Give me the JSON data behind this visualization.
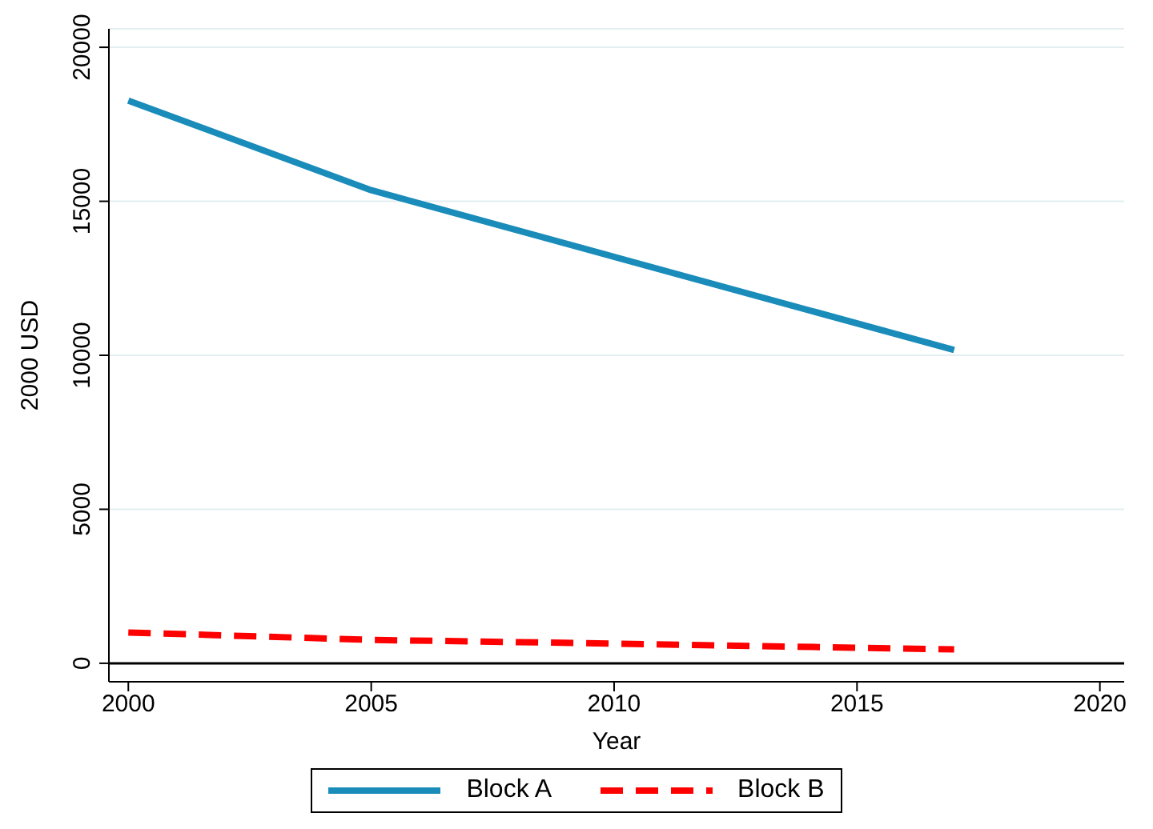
{
  "chart_data": {
    "type": "line",
    "xlabel": "Year",
    "ylabel": "2000 USD",
    "xlim": [
      1999.6,
      2020.5
    ],
    "xticks": [
      2000,
      2005,
      2010,
      2015,
      2020
    ],
    "ylim": [
      -600,
      20600
    ],
    "yticks": [
      0,
      5000,
      10000,
      15000,
      20000
    ],
    "grid": "y",
    "legend": "bottom",
    "line_style": "solid",
    "ref_lines": [
      {
        "axis": "y",
        "value": 0,
        "color": "#000000"
      }
    ],
    "series": [
      {
        "name": "Block A",
        "color": "#1a8cba",
        "x": [
          2000,
          2005,
          2017
        ],
        "values": [
          18270,
          15360,
          10170
        ]
      },
      {
        "name": "Block B",
        "color": "#ff0000",
        "line_style": "dashed",
        "x": [
          2000,
          2005,
          2010,
          2017
        ],
        "values": [
          1000,
          760,
          640,
          450
        ]
      }
    ]
  }
}
